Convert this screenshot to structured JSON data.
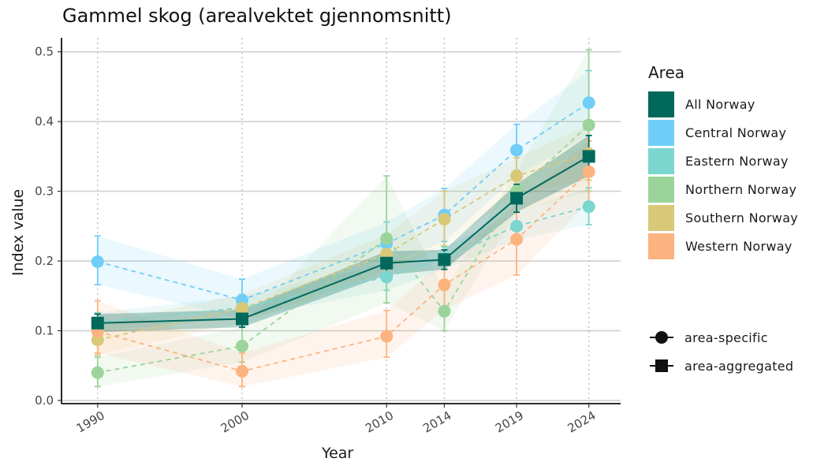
{
  "chart_data": {
    "type": "line",
    "title": "Gammel skog (arealvektet gjennomsnitt)",
    "xlabel": "Year",
    "ylabel": "Index value",
    "categories": [
      "1990",
      "2000",
      "2010",
      "2014",
      "2019",
      "2024"
    ],
    "x": [
      1990,
      2000,
      2010,
      2014,
      2019,
      2024
    ],
    "ylim": [
      0,
      0.52
    ],
    "yticks": [
      0.0,
      0.1,
      0.2,
      0.3,
      0.4,
      0.5
    ],
    "ytick_labels": [
      "0.0",
      "0.1",
      "0.2",
      "0.3",
      "0.4",
      "0.5"
    ],
    "legend_title": "Area",
    "series": [
      {
        "name": "All Norway",
        "color": "#00695C",
        "shape": "square",
        "linestyle": "solid",
        "values": [
          0.111,
          0.117,
          0.197,
          0.202,
          0.29,
          0.35
        ],
        "lower": [
          0.098,
          0.105,
          0.18,
          0.188,
          0.27,
          0.322
        ],
        "upper": [
          0.124,
          0.13,
          0.214,
          0.216,
          0.31,
          0.38
        ]
      },
      {
        "name": "Central Norway",
        "color": "#6FCEF7",
        "shape": "circle",
        "linestyle": "dashed",
        "values": [
          0.199,
          0.144,
          0.225,
          0.266,
          0.359,
          0.427
        ],
        "lower": [
          0.166,
          0.118,
          0.195,
          0.228,
          0.322,
          0.38
        ],
        "upper": [
          0.236,
          0.174,
          0.256,
          0.304,
          0.396,
          0.473
        ]
      },
      {
        "name": "Eastern Norway",
        "color": "#7AD6CE",
        "shape": "circle",
        "linestyle": "dashed",
        "values": [
          0.112,
          0.133,
          0.177,
          0.204,
          0.25,
          0.278
        ],
        "lower": [
          0.1,
          0.118,
          0.158,
          0.188,
          0.23,
          0.252
        ],
        "upper": [
          0.126,
          0.15,
          0.196,
          0.22,
          0.27,
          0.305
        ]
      },
      {
        "name": "Northern Norway",
        "color": "#9BD49A",
        "shape": "circle",
        "linestyle": "dashed",
        "values": [
          0.04,
          0.078,
          0.232,
          0.128,
          0.3,
          0.395
        ],
        "lower": [
          0.02,
          0.055,
          0.14,
          0.1,
          0.27,
          0.3
        ],
        "upper": [
          0.062,
          0.105,
          0.322,
          0.158,
          0.33,
          0.503
        ]
      },
      {
        "name": "Southern Norway",
        "color": "#D9C877",
        "shape": "circle",
        "linestyle": "dashed",
        "values": [
          0.087,
          0.132,
          0.21,
          0.26,
          0.322,
          0.354
        ],
        "lower": [
          0.065,
          0.112,
          0.185,
          0.222,
          0.296,
          0.316
        ],
        "upper": [
          0.11,
          0.152,
          0.238,
          0.3,
          0.348,
          0.395
        ]
      },
      {
        "name": "Western Norway",
        "color": "#FDB380",
        "shape": "circle",
        "linestyle": "dashed",
        "values": [
          0.099,
          0.042,
          0.092,
          0.166,
          0.231,
          0.328
        ],
        "lower": [
          0.068,
          0.02,
          0.062,
          0.13,
          0.18,
          0.285
        ],
        "upper": [
          0.143,
          0.068,
          0.129,
          0.202,
          0.282,
          0.372
        ]
      }
    ],
    "shape_legend": [
      {
        "shape": "circle",
        "label": "area-specific"
      },
      {
        "shape": "square",
        "label": "area-aggregated"
      }
    ],
    "grid": "horizontal major; vertical dotted at each year",
    "legend_position": "right"
  }
}
